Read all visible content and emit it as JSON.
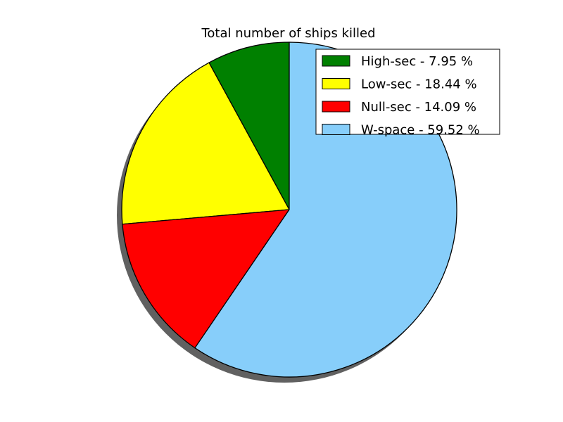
{
  "chart_data": {
    "type": "pie",
    "title": "Total number of ships killed",
    "slices": [
      {
        "label": "High-sec",
        "value": 7.95,
        "color": "#008000",
        "legend": "High-sec - 7.95 %"
      },
      {
        "label": "Low-sec",
        "value": 18.44,
        "color": "#ffff00",
        "legend": "Low-sec - 18.44 %"
      },
      {
        "label": "Null-sec",
        "value": 14.09,
        "color": "#ff0000",
        "legend": "Null-sec - 14.09 %"
      },
      {
        "label": "W-space",
        "value": 59.52,
        "color": "#87cefa",
        "legend": "W-space - 59.52 %"
      }
    ],
    "start_angle": "top",
    "direction": "counterclockwise",
    "shadow": true,
    "legend_position": "top-right"
  }
}
